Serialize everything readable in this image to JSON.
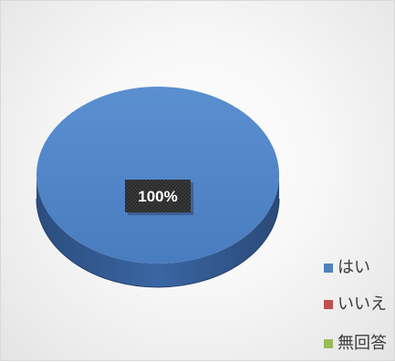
{
  "chart_data": {
    "type": "pie",
    "title": "",
    "categories": [
      "はい",
      "いいえ",
      "無回答"
    ],
    "values": [
      100,
      0,
      0
    ],
    "data_labels": [
      "100%"
    ],
    "legend_position": "bottom-right",
    "colors": [
      "#4f81bd",
      "#c0504d",
      "#9bbb59"
    ],
    "style": "3d"
  }
}
